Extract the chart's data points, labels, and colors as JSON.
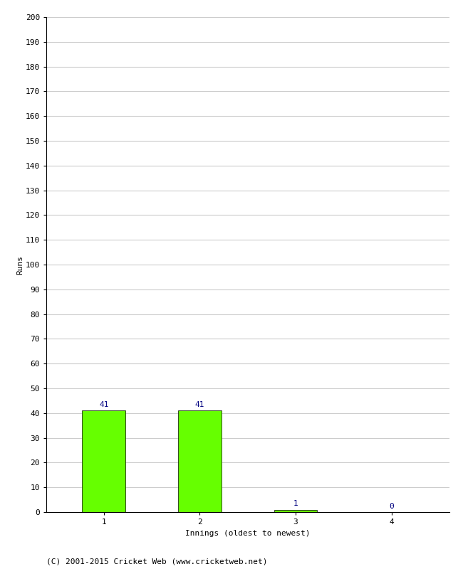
{
  "categories": [
    "1",
    "2",
    "3",
    "4"
  ],
  "values": [
    41,
    41,
    1,
    0
  ],
  "bar_color": "#66ff00",
  "bar_edge_color": "#000000",
  "value_color": "#000080",
  "xlabel": "Innings (oldest to newest)",
  "ylabel": "Runs",
  "ylim": [
    0,
    200
  ],
  "yticks": [
    0,
    10,
    20,
    30,
    40,
    50,
    60,
    70,
    80,
    90,
    100,
    110,
    120,
    130,
    140,
    150,
    160,
    170,
    180,
    190,
    200
  ],
  "background_color": "#ffffff",
  "grid_color": "#cccccc",
  "footer": "(C) 2001-2015 Cricket Web (www.cricketweb.net)",
  "bar_width": 0.45,
  "value_fontsize": 8,
  "axis_label_fontsize": 8,
  "tick_fontsize": 8,
  "footer_fontsize": 8
}
